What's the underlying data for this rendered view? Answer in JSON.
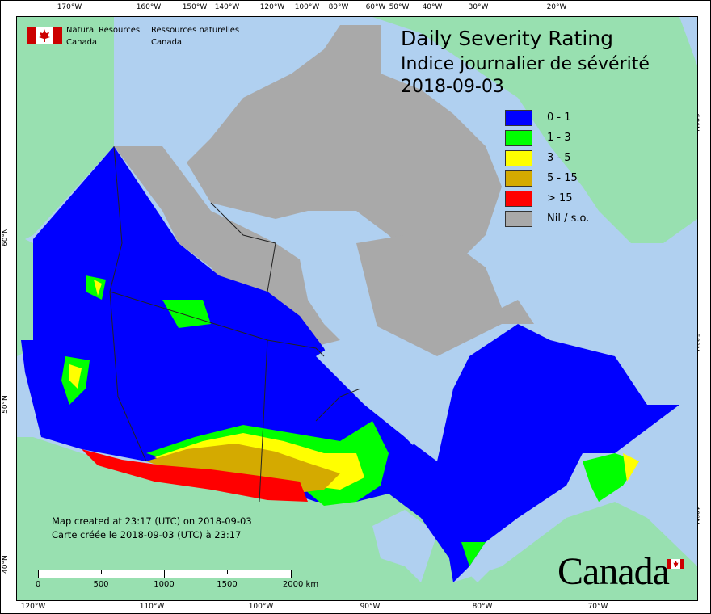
{
  "title": {
    "en": "Daily Severity Rating",
    "fr": "Indice journalier de sévérité",
    "date": "2018-09-03"
  },
  "agency": {
    "en_line1": "Natural Resources",
    "en_line2": "Canada",
    "fr_line1": "Ressources naturelles",
    "fr_line2": "Canada"
  },
  "legend": [
    {
      "label": "0 - 1",
      "color": "#0000ff"
    },
    {
      "label": "1 - 3",
      "color": "#00ff00"
    },
    {
      "label": "3 - 5",
      "color": "#ffff00"
    },
    {
      "label": "5 - 15",
      "color": "#d4aa00"
    },
    {
      "label": "> 15",
      "color": "#ff0000"
    },
    {
      "label": "Nil / s.o.",
      "color": "#a9a9a9"
    }
  ],
  "created": {
    "en": "Map created at 23:17 (UTC) on 2018-09-03",
    "fr": "Carte créée le 2018-09-03 (UTC) à 23:17"
  },
  "scale": {
    "labels": [
      "0",
      "500",
      "1000",
      "1500",
      "2000  km"
    ]
  },
  "graticule": {
    "top": [
      "170°W",
      "160°W",
      "150°W",
      "140°W",
      "120°W",
      "100°W",
      "80°W",
      "60°W",
      "50°W",
      "40°W",
      "30°W",
      "20°W"
    ],
    "bottom": [
      "120°W",
      "110°W",
      "100°W",
      "90°W",
      "80°W",
      "70°W"
    ],
    "left": [
      "60°N",
      "50°N",
      "40°N"
    ],
    "right": [
      "60°N",
      "50°N",
      "40°N"
    ]
  },
  "wordmark": "Canada",
  "colors": {
    "water": "#b0d0f0",
    "land": "#98e0b0",
    "nodata": "#a9a9a9"
  }
}
